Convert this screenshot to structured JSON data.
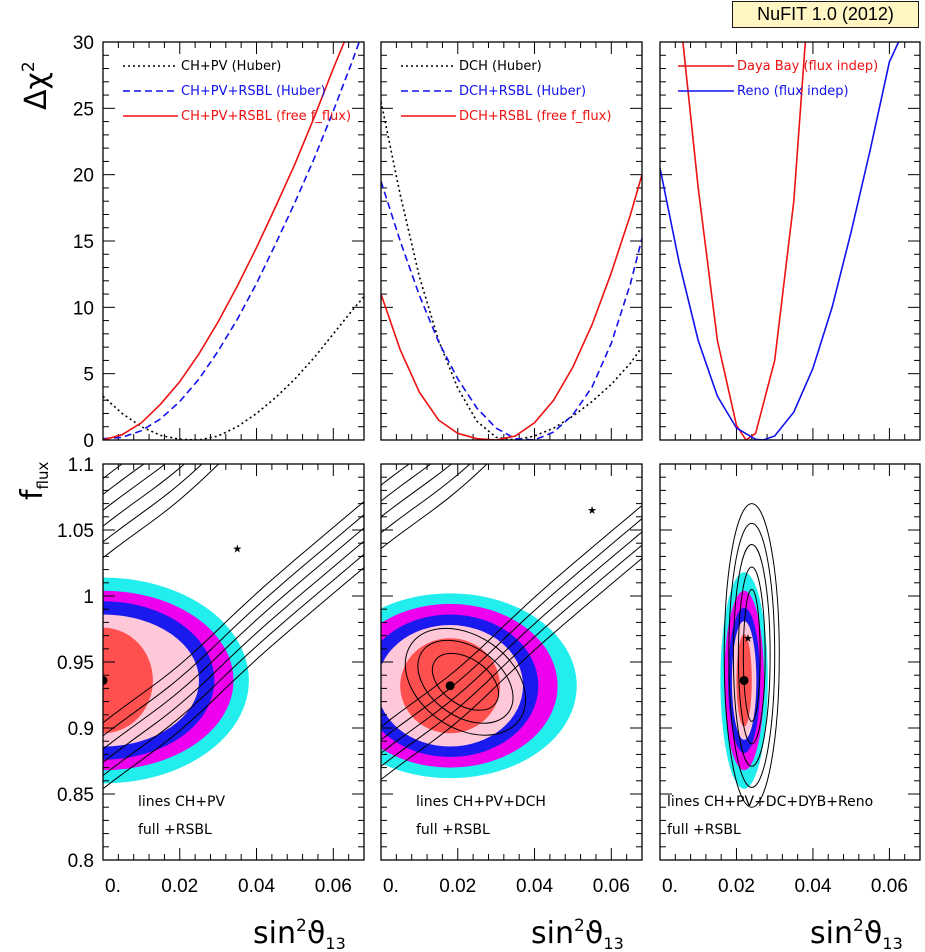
{
  "badge": "NuFIT 1.0 (2012)",
  "axis_labels": {
    "y_top": "Δχ²",
    "y_bottom": "f_flux",
    "x": "sin²ϑ13"
  },
  "colors": {
    "red": "#ee1111",
    "blue": "#1111ee",
    "black": "#000000",
    "sigma1_fill": "#ff5050",
    "sigma2_fill": "#ffc8d8",
    "sigma3_fill": "#1a1aee",
    "sigma4_fill": "#ee00ee",
    "sigma5_fill": "#22eeee"
  },
  "chart_data": [
    {
      "type": "line",
      "panel": "top-left",
      "ylabel": "Δχ²",
      "xlim": [
        0,
        0.068
      ],
      "ylim": [
        0,
        30
      ],
      "x_ticks": [
        "0.",
        "0.02",
        "0.04",
        "0.06"
      ],
      "y_ticks": [
        "0",
        "5",
        "10",
        "15",
        "20",
        "25",
        "30"
      ],
      "legend_position": "top",
      "series": [
        {
          "name": "CH+PV (Huber)",
          "style": "dotted",
          "color": "black",
          "x": [
            0,
            0.005,
            0.01,
            0.015,
            0.02,
            0.025,
            0.03,
            0.035,
            0.04,
            0.045,
            0.05,
            0.055,
            0.06,
            0.065,
            0.068
          ],
          "y": [
            3.3,
            2.0,
            1.0,
            0.35,
            0.05,
            0.0,
            0.3,
            1.0,
            2.0,
            3.2,
            4.6,
            6.2,
            8.0,
            9.8,
            10.8
          ]
        },
        {
          "name": "CH+PV+RSBL (Huber)",
          "style": "dashed",
          "color": "blue",
          "x": [
            0,
            0.005,
            0.01,
            0.015,
            0.02,
            0.025,
            0.03,
            0.035,
            0.04,
            0.045,
            0.05,
            0.055,
            0.06,
            0.065,
            0.068
          ],
          "y": [
            0.1,
            0.2,
            0.7,
            1.6,
            2.9,
            4.6,
            6.7,
            9.1,
            11.8,
            14.8,
            17.9,
            21.2,
            24.8,
            28.6,
            31.0
          ]
        },
        {
          "name": "CH+PV+RSBL (free f_flux)",
          "style": "solid",
          "color": "red",
          "x": [
            0,
            0.005,
            0.01,
            0.015,
            0.02,
            0.025,
            0.03,
            0.035,
            0.04,
            0.045,
            0.05,
            0.055,
            0.06,
            0.065
          ],
          "y": [
            0.0,
            0.4,
            1.3,
            2.7,
            4.4,
            6.5,
            8.9,
            11.6,
            14.5,
            17.6,
            20.8,
            24.3,
            28.0,
            31.5
          ]
        }
      ]
    },
    {
      "type": "line",
      "panel": "top-middle",
      "xlim": [
        0,
        0.068
      ],
      "ylim": [
        0,
        30
      ],
      "x_ticks": [
        "0.",
        "0.02",
        "0.04",
        "0.06"
      ],
      "legend_position": "top",
      "series": [
        {
          "name": "DCH (Huber)",
          "style": "dotted",
          "color": "black",
          "x": [
            0,
            0.005,
            0.01,
            0.015,
            0.02,
            0.025,
            0.03,
            0.035,
            0.04,
            0.045,
            0.05,
            0.055,
            0.06,
            0.065,
            0.068
          ],
          "y": [
            25.5,
            18.5,
            12.3,
            7.5,
            3.9,
            1.4,
            0.2,
            0.0,
            0.3,
            0.9,
            1.8,
            2.9,
            4.2,
            5.8,
            7.0
          ]
        },
        {
          "name": "DCH+RSBL (Huber)",
          "style": "dashed",
          "color": "blue",
          "x": [
            0,
            0.005,
            0.01,
            0.015,
            0.02,
            0.025,
            0.03,
            0.035,
            0.04,
            0.045,
            0.05,
            0.055,
            0.06,
            0.065,
            0.068
          ],
          "y": [
            19.5,
            15.0,
            10.9,
            7.4,
            4.6,
            2.4,
            0.9,
            0.1,
            0.0,
            0.6,
            1.9,
            4.0,
            7.3,
            11.8,
            15.2
          ]
        },
        {
          "name": "DCH+RSBL (free f_flux)",
          "style": "solid",
          "color": "red",
          "x": [
            0,
            0.005,
            0.01,
            0.015,
            0.02,
            0.025,
            0.03,
            0.035,
            0.04,
            0.045,
            0.05,
            0.055,
            0.06,
            0.065,
            0.068
          ],
          "y": [
            11.0,
            6.8,
            3.6,
            1.5,
            0.5,
            0.1,
            0.0,
            0.3,
            1.3,
            3.0,
            5.5,
            8.7,
            12.6,
            17.0,
            20.0
          ]
        }
      ]
    },
    {
      "type": "line",
      "panel": "top-right",
      "xlim": [
        0,
        0.068
      ],
      "ylim": [
        0,
        30
      ],
      "x_ticks": [
        "0.",
        "0.02",
        "0.04",
        "0.06"
      ],
      "legend_position": "top",
      "series": [
        {
          "name": "Daya Bay (flux indep)",
          "style": "solid",
          "color": "red",
          "x": [
            0.006,
            0.01,
            0.015,
            0.02,
            0.0225,
            0.025,
            0.03,
            0.035,
            0.038
          ],
          "y": [
            30,
            19.0,
            7.5,
            1.1,
            0.0,
            0.5,
            6.0,
            18.0,
            30
          ]
        },
        {
          "name": "Reno (flux indep)",
          "style": "solid",
          "color": "blue",
          "x": [
            0,
            0.005,
            0.01,
            0.015,
            0.02,
            0.025,
            0.027,
            0.03,
            0.035,
            0.04,
            0.045,
            0.05,
            0.055,
            0.06,
            0.064
          ],
          "y": [
            20.5,
            13.4,
            7.5,
            3.3,
            0.9,
            0.05,
            0.0,
            0.3,
            2.1,
            5.4,
            10.0,
            15.7,
            21.9,
            28.5,
            31.0
          ]
        }
      ]
    },
    {
      "type": "contour",
      "panel": "bottom-left",
      "ylabel": "f_flux",
      "xlabel": "sin²ϑ13",
      "xlim": [
        0,
        0.068
      ],
      "ylim": [
        0.8,
        1.1
      ],
      "x_ticks": [
        "0.",
        "0.02",
        "0.04",
        "0.06"
      ],
      "y_ticks": [
        "0.8",
        "0.85",
        "0.9",
        "0.95",
        "1",
        "1.05",
        "1.1"
      ],
      "annotations": [
        "lines CH+PV",
        "full +RSBL"
      ],
      "best_fit_full": {
        "x": 0.0,
        "y": 0.936
      },
      "best_fit_lines": {
        "x": 0.035,
        "y": 1.036
      },
      "regions": {
        "center": [
          0.0,
          0.936
        ],
        "sigma_dx": [
          0.013,
          0.025,
          0.029,
          0.034,
          0.038
        ],
        "sigma_dy": [
          0.04,
          0.05,
          0.06,
          0.068,
          0.078
        ]
      },
      "line_contours": {
        "slope": 2.45,
        "offsets": [
          0.855,
          0.865,
          0.875,
          0.885,
          0.895,
          0.905
        ]
      }
    },
    {
      "type": "contour",
      "panel": "bottom-middle",
      "xlabel": "sin²ϑ13",
      "xlim": [
        0,
        0.068
      ],
      "ylim": [
        0.8,
        1.1
      ],
      "x_ticks": [
        "0.",
        "0.02",
        "0.04",
        "0.06"
      ],
      "annotations": [
        "lines CH+PV+DCH",
        "full +RSBL"
      ],
      "best_fit_full": {
        "x": 0.018,
        "y": 0.932
      },
      "best_fit_lines": {
        "x": 0.055,
        "y": 1.065
      },
      "regions": {
        "center": [
          0.018,
          0.932
        ],
        "sigma_dx": [
          0.013,
          0.019,
          0.023,
          0.028,
          0.033
        ],
        "sigma_dy": [
          0.036,
          0.046,
          0.054,
          0.062,
          0.07
        ]
      },
      "line_contours": {
        "slope": 2.45,
        "offsets": [
          0.862,
          0.872,
          0.882,
          0.892,
          0.902
        ]
      }
    },
    {
      "type": "contour",
      "panel": "bottom-right",
      "xlabel": "sin²ϑ13",
      "xlim": [
        0,
        0.068
      ],
      "ylim": [
        0.8,
        1.1
      ],
      "x_ticks": [
        "0.",
        "0.02",
        "0.04",
        "0.06"
      ],
      "annotations": [
        "lines CH+PV+DC+DYB+Reno",
        "full +RSBL"
      ],
      "best_fit_full": {
        "x": 0.022,
        "y": 0.936
      },
      "best_fit_lines": {
        "x": 0.023,
        "y": 0.968
      },
      "regions": {
        "center": [
          0.022,
          0.936
        ],
        "sigma_dx": [
          0.002,
          0.0032,
          0.0042,
          0.0052,
          0.0062
        ],
        "sigma_dy": [
          0.035,
          0.045,
          0.055,
          0.068,
          0.082
        ]
      },
      "line_ellipses": {
        "center": [
          0.024,
          0.955
        ],
        "dx": [
          0.0022,
          0.0035,
          0.0048,
          0.006,
          0.0072
        ],
        "dy": [
          0.05,
          0.067,
          0.084,
          0.1,
          0.115
        ]
      }
    }
  ]
}
